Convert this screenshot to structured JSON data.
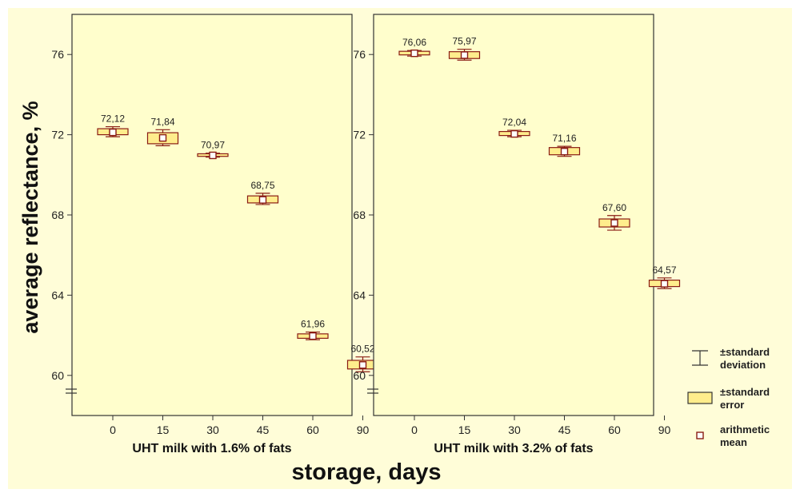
{
  "chart_data": {
    "type": "box",
    "ylabel": "average reflectance, %",
    "xlabel": "storage, days",
    "ylim": [
      58,
      78
    ],
    "yticks": [
      "60",
      "64",
      "68",
      "72",
      "76"
    ],
    "colors": {
      "outer_background": "#fffdd8",
      "panel_background": "#fffecc",
      "box_fill": "#ffed8c",
      "outline": "#8a1c14",
      "frame": "#333333"
    },
    "panels": [
      {
        "label": "UHT milk with 1.6% of fats",
        "categories": [
          "0",
          "15",
          "30",
          "45",
          "60",
          "90"
        ],
        "mean_labels": [
          "72,12",
          "71,84",
          "70,97",
          "68,75",
          "61,96",
          "60,52"
        ],
        "means": [
          72.12,
          71.84,
          70.97,
          68.75,
          61.96,
          60.52
        ],
        "se_low": [
          72.0,
          71.55,
          70.92,
          68.6,
          61.85,
          60.32
        ],
        "se_high": [
          72.3,
          72.1,
          71.05,
          68.95,
          62.07,
          60.75
        ],
        "sd_low": [
          71.9,
          71.45,
          70.88,
          68.52,
          61.78,
          60.18
        ],
        "sd_high": [
          72.4,
          72.25,
          71.08,
          69.08,
          62.16,
          60.92
        ]
      },
      {
        "label": "UHT milk with 3.2% of fats",
        "categories": [
          "0",
          "15",
          "30",
          "45",
          "60",
          "90"
        ],
        "mean_labels": [
          "76,06",
          "75,97",
          "72,04",
          "71,16",
          "67,60",
          "64,57"
        ],
        "means": [
          76.06,
          75.97,
          72.04,
          71.16,
          67.6,
          64.57
        ],
        "se_low": [
          75.98,
          75.8,
          71.96,
          71.0,
          67.4,
          64.43
        ],
        "se_high": [
          76.16,
          76.14,
          72.16,
          71.36,
          67.8,
          64.75
        ],
        "sd_low": [
          75.92,
          75.72,
          71.9,
          70.92,
          67.24,
          64.33
        ],
        "sd_high": [
          76.2,
          76.26,
          72.22,
          71.42,
          67.97,
          64.86
        ]
      }
    ],
    "legend": [
      {
        "key": "sd",
        "label_line1": "±standard",
        "label_line2": "deviation"
      },
      {
        "key": "se",
        "label_line1": "±standard",
        "label_line2": "error"
      },
      {
        "key": "mean",
        "label_line1": "arithmetic",
        "label_line2": "mean"
      }
    ]
  }
}
